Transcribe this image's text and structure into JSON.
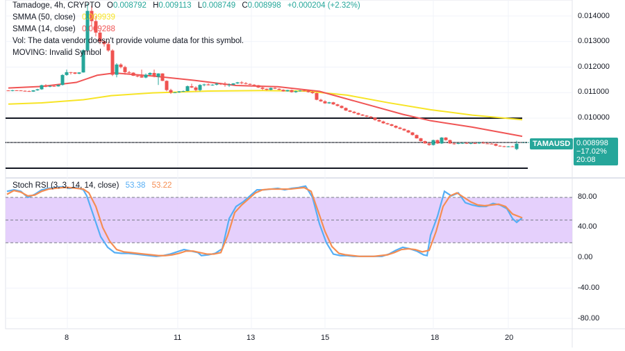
{
  "header": {
    "symbol_line": "Tamadoge, 4h, CRYPTO",
    "open_label": "O",
    "open": "0.008792",
    "high_label": "H",
    "high": "0.009113",
    "low_label": "L",
    "low": "0.008749",
    "close_label": "C",
    "close": "0.008998",
    "change": "+0.000204 (+2.32%)"
  },
  "indicators": [
    {
      "label": "SMMA (50, close)",
      "value": "0.009939",
      "color": "#f7e425"
    },
    {
      "label": "SMMA (14, close)",
      "value": "0.009288",
      "color": "#f05454"
    },
    {
      "label": "Vol: The data vendor doesn't provide volume data for this symbol.",
      "value": ""
    },
    {
      "label": "MOVING: Invalid Symbol",
      "value": ""
    }
  ],
  "stoch": {
    "label": "Stoch RSI (3, 3, 14, 14, close)",
    "k_value": "53.38",
    "d_value": "53.22",
    "k_color": "#55aef5",
    "d_color": "#f58d52"
  },
  "price_tag": {
    "symbol": "TAMAUSD",
    "price": "0.008998",
    "change_pct": "−17.02%",
    "countdown": "20:08"
  },
  "colors": {
    "up": "#26a69a",
    "down": "#ef5350",
    "smma50": "#f7e425",
    "smma14": "#f05454",
    "band": "#e1c8fb",
    "hline": "#131722"
  },
  "chart_data": [
    {
      "type": "candlestick",
      "title": "Tamadoge, 4h, CRYPTO",
      "ylabel": "TAMAUSD",
      "yticks": [
        "0.014000",
        "0.013000",
        "0.012000",
        "0.011000",
        "0.010000",
        "0.009000"
      ],
      "ylim": [
        0.0087,
        0.0143
      ],
      "xticks": [
        "8",
        "11",
        "13",
        "15",
        "18",
        "20"
      ],
      "horizontal_lines": [
        0.01,
        0.009,
        0.00868
      ],
      "series": [
        {
          "name": "SMMA (50, close)",
          "last": 0.009939
        },
        {
          "name": "SMMA (14, close)",
          "last": 0.009288
        }
      ],
      "ohlc_last": {
        "open": 0.008792,
        "high": 0.009113,
        "low": 0.008749,
        "close": 0.008998,
        "change": 0.000204,
        "change_pct": 2.32
      }
    },
    {
      "type": "line",
      "title": "Stoch RSI (3, 3, 14, 14, close)",
      "ylim": [
        -90,
        100
      ],
      "yticks": [
        "80.00",
        "40.00",
        "0.00",
        "-40.00",
        "-80.00"
      ],
      "band": [
        20,
        80
      ],
      "series": [
        {
          "name": "K",
          "last": 53.38
        },
        {
          "name": "D",
          "last": 53.22
        }
      ]
    }
  ],
  "candles": [
    [
      12,
      11085,
      11095,
      11060,
      11080
    ],
    [
      18,
      11080,
      11110,
      11050,
      11090
    ],
    [
      24,
      11090,
      11100,
      11070,
      11085
    ],
    [
      30,
      11085,
      11100,
      11060,
      11070
    ],
    [
      36,
      11070,
      11090,
      11040,
      11060
    ],
    [
      42,
      11060,
      11080,
      11030,
      11040
    ],
    [
      48,
      11040,
      11100,
      11030,
      11090
    ],
    [
      54,
      11090,
      11150,
      11070,
      11130
    ],
    [
      60,
      11130,
      11310,
      11110,
      11290
    ],
    [
      66,
      11290,
      11330,
      11210,
      11230
    ],
    [
      72,
      11230,
      11280,
      11210,
      11260
    ],
    [
      78,
      11260,
      11290,
      11230,
      11245
    ],
    [
      84,
      11245,
      11320,
      11230,
      11300
    ],
    [
      90,
      11300,
      11720,
      11280,
      11690
    ],
    [
      96,
      11690,
      11900,
      11660,
      11800
    ],
    [
      102,
      11800,
      11810,
      11710,
      11790
    ],
    [
      108,
      11790,
      11800,
      11720,
      11740
    ],
    [
      114,
      11740,
      11800,
      11720,
      11790
    ],
    [
      120,
      11790,
      12700,
      11780,
      12660
    ],
    [
      126,
      12660,
      14500,
      12600,
      14200
    ],
    [
      132,
      14200,
      14400,
      13600,
      13800
    ],
    [
      138,
      13800,
      14000,
      13200,
      13350
    ],
    [
      144,
      13350,
      13400,
      12900,
      13000
    ],
    [
      150,
      13000,
      13050,
      12800,
      12900
    ],
    [
      156,
      12900,
      12980,
      12600,
      12650
    ],
    [
      162,
      12650,
      12700,
      11650,
      11700
    ],
    [
      168,
      11700,
      12150,
      11600,
      12100
    ],
    [
      174,
      12100,
      12150,
      11950,
      12000
    ],
    [
      180,
      12000,
      12050,
      11700,
      11800
    ],
    [
      186,
      11800,
      11850,
      11750,
      11780
    ],
    [
      192,
      11780,
      11800,
      11650,
      11660
    ],
    [
      198,
      11660,
      11700,
      11600,
      11650
    ],
    [
      204,
      11650,
      11900,
      11580,
      11590
    ],
    [
      210,
      11590,
      11750,
      11560,
      11700
    ],
    [
      216,
      11700,
      11800,
      11680,
      11770
    ],
    [
      222,
      11770,
      11900,
      11600,
      11620
    ],
    [
      228,
      11620,
      11760,
      11300,
      11750
    ],
    [
      234,
      11750,
      11760,
      11450,
      11460
    ],
    [
      240,
      11460,
      11480,
      11050,
      11100
    ],
    [
      246,
      11100,
      11150,
      10950,
      11000
    ],
    [
      252,
      11000,
      11020,
      10980,
      11010
    ],
    [
      258,
      11010,
      11060,
      10990,
      11050
    ],
    [
      264,
      11050,
      11080,
      11030,
      11060
    ],
    [
      270,
      11060,
      11280,
      11050,
      11250
    ],
    [
      276,
      11250,
      11350,
      11180,
      11200
    ],
    [
      282,
      11200,
      11250,
      11050,
      11100
    ],
    [
      288,
      11100,
      11330,
      11050,
      11300
    ],
    [
      294,
      11300,
      11350,
      11250,
      11320
    ],
    [
      300,
      11320,
      11360,
      11280,
      11290
    ],
    [
      306,
      11290,
      11330,
      11270,
      11310
    ],
    [
      312,
      11310,
      11390,
      11280,
      11350
    ],
    [
      318,
      11350,
      11380,
      11300,
      11330
    ],
    [
      324,
      11330,
      11420,
      11230,
      11300
    ],
    [
      330,
      11300,
      11360,
      11220,
      11310
    ],
    [
      336,
      11310,
      11370,
      11290,
      11360
    ],
    [
      342,
      11360,
      11420,
      11340,
      11400
    ],
    [
      348,
      11400,
      11450,
      11330,
      11370
    ],
    [
      354,
      11370,
      11410,
      11320,
      11340
    ],
    [
      360,
      11340,
      11360,
      11300,
      11310
    ],
    [
      366,
      11310,
      11330,
      11260,
      11290
    ],
    [
      372,
      11290,
      11300,
      11180,
      11200
    ],
    [
      378,
      11200,
      11220,
      11100,
      11150
    ],
    [
      384,
      11150,
      11160,
      11080,
      11110
    ],
    [
      390,
      11110,
      11200,
      11090,
      11180
    ],
    [
      396,
      11180,
      11230,
      11140,
      11150
    ],
    [
      402,
      11150,
      11170,
      11100,
      11110
    ],
    [
      408,
      11110,
      11130,
      11040,
      11050
    ],
    [
      414,
      11050,
      11110,
      11040,
      11100
    ],
    [
      420,
      11100,
      11120,
      11000,
      11020
    ],
    [
      426,
      11020,
      11080,
      10990,
      11060
    ],
    [
      432,
      11060,
      11100,
      11040,
      11080
    ],
    [
      438,
      11080,
      11120,
      11050,
      11070
    ],
    [
      444,
      11070,
      11100,
      11000,
      11020
    ],
    [
      450,
      11020,
      11060,
      10950,
      10980
    ],
    [
      456,
      10980,
      11000,
      10700,
      10720
    ],
    [
      462,
      10720,
      10760,
      10640,
      10660
    ],
    [
      468,
      10660,
      10700,
      10560,
      10580
    ],
    [
      474,
      10580,
      10640,
      10560,
      10620
    ],
    [
      480,
      10620,
      10640,
      10520,
      10540
    ],
    [
      486,
      10540,
      10560,
      10460,
      10480
    ],
    [
      492,
      10480,
      10500,
      10380,
      10400
    ],
    [
      498,
      10400,
      10420,
      10280,
      10300
    ],
    [
      504,
      10300,
      10320,
      10230,
      10250
    ],
    [
      510,
      10250,
      10280,
      10180,
      10200
    ],
    [
      516,
      10200,
      10220,
      10120,
      10140
    ],
    [
      522,
      10140,
      10160,
      10080,
      10100
    ],
    [
      528,
      10100,
      10120,
      10040,
      10060
    ],
    [
      534,
      10060,
      10080,
      9990,
      10020
    ],
    [
      540,
      10020,
      10040,
      9900,
      9930
    ],
    [
      546,
      9930,
      9960,
      9850,
      9870
    ],
    [
      552,
      9870,
      9900,
      9780,
      9800
    ],
    [
      558,
      9800,
      9820,
      9740,
      9760
    ],
    [
      564,
      9760,
      9780,
      9680,
      9700
    ],
    [
      570,
      9700,
      9720,
      9600,
      9630
    ],
    [
      576,
      9630,
      9660,
      9560,
      9580
    ],
    [
      582,
      9580,
      9600,
      9500,
      9520
    ],
    [
      588,
      9520,
      9540,
      9420,
      9440
    ],
    [
      594,
      9440,
      9460,
      9320,
      9340
    ],
    [
      600,
      9340,
      9360,
      9200,
      9210
    ],
    [
      606,
      9210,
      9230,
      9080,
      9100
    ],
    [
      612,
      9100,
      9120,
      9000,
      9010
    ],
    [
      618,
      9010,
      9030,
      8920,
      8950
    ],
    [
      624,
      8950,
      9160,
      8930,
      9140
    ],
    [
      630,
      9140,
      9160,
      8990,
      9010
    ],
    [
      636,
      9010,
      9260,
      8990,
      9240
    ],
    [
      642,
      9240,
      9260,
      9120,
      9140
    ],
    [
      648,
      9140,
      9160,
      8990,
      9010
    ],
    [
      654,
      9010,
      9040,
      8960,
      9000
    ],
    [
      660,
      9000,
      9040,
      8980,
      9020
    ],
    [
      666,
      9020,
      9050,
      8990,
      9030
    ],
    [
      672,
      9030,
      9060,
      8990,
      9000
    ],
    [
      678,
      9000,
      9040,
      8980,
      9020
    ],
    [
      684,
      9020,
      9050,
      8990,
      9010
    ],
    [
      690,
      9010,
      9060,
      8990,
      9040
    ],
    [
      696,
      9040,
      9080,
      9000,
      9010
    ],
    [
      702,
      9010,
      9040,
      8990,
      9000
    ],
    [
      708,
      9000,
      9030,
      8980,
      8990
    ],
    [
      714,
      8990,
      9010,
      8900,
      8920
    ],
    [
      720,
      8920,
      8940,
      8880,
      8900
    ],
    [
      726,
      8900,
      8920,
      8860,
      8880
    ],
    [
      732,
      8880,
      8910,
      8860,
      8895
    ],
    [
      738,
      8895,
      8920,
      8870,
      8890
    ],
    [
      744,
      8792,
      9113,
      8749,
      8998
    ]
  ],
  "smma50": [
    [
      12,
      10550
    ],
    [
      60,
      10600
    ],
    [
      120,
      10720
    ],
    [
      160,
      10880
    ],
    [
      220,
      10990
    ],
    [
      300,
      11060
    ],
    [
      380,
      11080
    ],
    [
      440,
      11060
    ],
    [
      500,
      10900
    ],
    [
      560,
      10600
    ],
    [
      620,
      10330
    ],
    [
      680,
      10120
    ],
    [
      752,
      9939
    ]
  ],
  "smma14": [
    [
      12,
      11180
    ],
    [
      60,
      11240
    ],
    [
      110,
      11400
    ],
    [
      140,
      11680
    ],
    [
      165,
      11770
    ],
    [
      220,
      11650
    ],
    [
      280,
      11480
    ],
    [
      340,
      11280
    ],
    [
      400,
      11230
    ],
    [
      460,
      11050
    ],
    [
      520,
      10600
    ],
    [
      580,
      10150
    ],
    [
      620,
      9900
    ],
    [
      680,
      9650
    ],
    [
      752,
      9288
    ]
  ],
  "stoch_k": [
    [
      10,
      88
    ],
    [
      20,
      90
    ],
    [
      30,
      88
    ],
    [
      40,
      80
    ],
    [
      50,
      84
    ],
    [
      60,
      90
    ],
    [
      70,
      92
    ],
    [
      80,
      93
    ],
    [
      90,
      94
    ],
    [
      100,
      92
    ],
    [
      110,
      93
    ],
    [
      120,
      90
    ],
    [
      125,
      82
    ],
    [
      135,
      55
    ],
    [
      145,
      28
    ],
    [
      155,
      14
    ],
    [
      165,
      7
    ],
    [
      175,
      6
    ],
    [
      185,
      6
    ],
    [
      195,
      5
    ],
    [
      205,
      4
    ],
    [
      215,
      3
    ],
    [
      225,
      2
    ],
    [
      235,
      3
    ],
    [
      245,
      5
    ],
    [
      255,
      8
    ],
    [
      265,
      11
    ],
    [
      275,
      9
    ],
    [
      285,
      7
    ],
    [
      290,
      3
    ],
    [
      300,
      4
    ],
    [
      310,
      6
    ],
    [
      320,
      12
    ],
    [
      330,
      52
    ],
    [
      340,
      68
    ],
    [
      350,
      74
    ],
    [
      360,
      82
    ],
    [
      370,
      90
    ],
    [
      380,
      90
    ],
    [
      390,
      91
    ],
    [
      400,
      92
    ],
    [
      410,
      90
    ],
    [
      420,
      92
    ],
    [
      430,
      93
    ],
    [
      440,
      95
    ],
    [
      450,
      80
    ],
    [
      460,
      45
    ],
    [
      470,
      20
    ],
    [
      480,
      5
    ],
    [
      490,
      3
    ],
    [
      500,
      3
    ],
    [
      510,
      2
    ],
    [
      520,
      2
    ],
    [
      530,
      2
    ],
    [
      540,
      2
    ],
    [
      550,
      2
    ],
    [
      560,
      5
    ],
    [
      570,
      10
    ],
    [
      580,
      14
    ],
    [
      590,
      12
    ],
    [
      600,
      9
    ],
    [
      610,
      4
    ],
    [
      615,
      3
    ],
    [
      620,
      30
    ],
    [
      630,
      55
    ],
    [
      640,
      88
    ],
    [
      650,
      82
    ],
    [
      660,
      86
    ],
    [
      670,
      73
    ],
    [
      680,
      70
    ],
    [
      690,
      68
    ],
    [
      700,
      68
    ],
    [
      710,
      72
    ],
    [
      720,
      70
    ],
    [
      730,
      65
    ],
    [
      738,
      52
    ],
    [
      744,
      47
    ],
    [
      752,
      53
    ]
  ],
  "stoch_d": [
    [
      10,
      84
    ],
    [
      20,
      89
    ],
    [
      30,
      87
    ],
    [
      40,
      82
    ],
    [
      50,
      83
    ],
    [
      60,
      88
    ],
    [
      70,
      91
    ],
    [
      80,
      92
    ],
    [
      90,
      93
    ],
    [
      100,
      93
    ],
    [
      110,
      92
    ],
    [
      120,
      91
    ],
    [
      128,
      86
    ],
    [
      138,
      68
    ],
    [
      148,
      40
    ],
    [
      158,
      22
    ],
    [
      168,
      11
    ],
    [
      178,
      8
    ],
    [
      188,
      7
    ],
    [
      198,
      6
    ],
    [
      208,
      5
    ],
    [
      218,
      4
    ],
    [
      228,
      3
    ],
    [
      238,
      3
    ],
    [
      248,
      4
    ],
    [
      258,
      6
    ],
    [
      268,
      9
    ],
    [
      278,
      9
    ],
    [
      288,
      7
    ],
    [
      298,
      5
    ],
    [
      308,
      5
    ],
    [
      318,
      7
    ],
    [
      328,
      30
    ],
    [
      338,
      60
    ],
    [
      348,
      70
    ],
    [
      358,
      78
    ],
    [
      368,
      86
    ],
    [
      378,
      90
    ],
    [
      388,
      91
    ],
    [
      398,
      91
    ],
    [
      408,
      91
    ],
    [
      418,
      91
    ],
    [
      428,
      92
    ],
    [
      438,
      93
    ],
    [
      448,
      88
    ],
    [
      458,
      62
    ],
    [
      468,
      35
    ],
    [
      478,
      15
    ],
    [
      488,
      6
    ],
    [
      498,
      4
    ],
    [
      508,
      3
    ],
    [
      518,
      2
    ],
    [
      528,
      2
    ],
    [
      538,
      2
    ],
    [
      548,
      3
    ],
    [
      558,
      4
    ],
    [
      568,
      7
    ],
    [
      578,
      11
    ],
    [
      588,
      12
    ],
    [
      598,
      11
    ],
    [
      608,
      8
    ],
    [
      618,
      10
    ],
    [
      628,
      35
    ],
    [
      638,
      68
    ],
    [
      648,
      82
    ],
    [
      658,
      86
    ],
    [
      668,
      80
    ],
    [
      678,
      74
    ],
    [
      688,
      70
    ],
    [
      698,
      69
    ],
    [
      708,
      70
    ],
    [
      718,
      71
    ],
    [
      728,
      68
    ],
    [
      738,
      58
    ],
    [
      752,
      53
    ]
  ]
}
